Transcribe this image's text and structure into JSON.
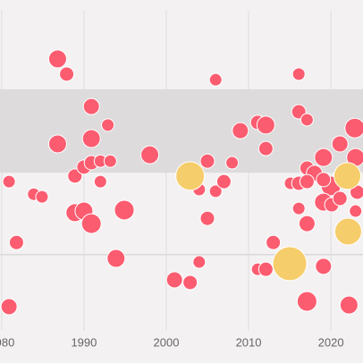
{
  "chart_data": {
    "type": "scatter",
    "xlim": [
      1979.8,
      2023.9
    ],
    "ylim": [
      0,
      100
    ],
    "xticks": [
      1980,
      1990,
      2000,
      2010,
      2020
    ],
    "yticks": [
      23
    ],
    "band": [
      47.8,
      73
    ],
    "grid": true,
    "series": [
      {
        "color": "#fc5c70",
        "x": [
          1986.8,
          1987.9,
          2006.0,
          1980.9,
          1983.9,
          1984.9,
          1981.8,
          1980.9,
          1986.8,
          1990.9,
          1990.9,
          1992.9,
          1988.9,
          1990.0,
          1990.9,
          1992.0,
          1993.2,
          1992.0,
          1998.0,
          1988.9,
          1990.0,
          1990.9,
          1994.9,
          1993.9,
          2001.0,
          2002.9,
          2004.0,
          2005.0,
          2004.0,
          2006.0,
          2007.0,
          2005.0,
          2008.0,
          2009.0,
          2011.1,
          2012.1,
          2012.1,
          2013.0,
          2011.1,
          2012.1,
          2016.1,
          2016.1,
          2017.1,
          2017.1,
          2018.0,
          2015.1,
          2016.1,
          2017.1,
          2016.1,
          2017.1,
          2017.1,
          2019.1,
          2019.1,
          2021.1,
          2022.9,
          2023.0,
          2020.0,
          2019.1,
          2020.1,
          2021.1,
          2023.2,
          2023.0,
          2022.2,
          2019.1
        ],
        "y": [
          82.2,
          77.6,
          75.9,
          45.1,
          41.3,
          40.5,
          26.7,
          7.3,
          56.5,
          67.8,
          58.1,
          62.2,
          46.8,
          49.5,
          50.8,
          51.3,
          51.3,
          45.1,
          53.2,
          35.7,
          36.2,
          32.4,
          36.5,
          21.9,
          15.4,
          14.6,
          20.8,
          51.3,
          42.7,
          42.2,
          45.1,
          34.0,
          50.8,
          60.5,
          63.0,
          62.2,
          55.1,
          26.7,
          18.6,
          18.6,
          77.6,
          66.2,
          63.8,
          49.2,
          47.6,
          44.6,
          44.6,
          45.1,
          37.0,
          32.4,
          8.9,
          19.5,
          52.4,
          56.5,
          61.3,
          52.4,
          43.8,
          38.9,
          38.1,
          40.0,
          41.9,
          36.2,
          7.8,
          45.7
        ],
        "sizes": [
          10,
          8,
          7,
          7,
          7,
          7,
          8,
          9,
          10,
          9,
          10,
          7,
          8,
          8,
          8,
          7,
          7,
          7,
          10,
          10,
          10,
          11,
          11,
          10,
          9,
          8,
          7,
          8,
          7,
          7,
          8,
          8,
          7,
          9,
          8,
          10,
          8,
          8,
          7,
          8,
          7,
          8,
          7,
          8,
          9,
          7,
          8,
          8,
          7,
          9,
          11,
          9,
          10,
          9,
          11,
          10,
          11,
          10,
          8,
          8,
          8,
          7,
          10,
          8
        ]
      },
      {
        "color": "#f6cd6b",
        "x": [
          2002.9,
          2022.0,
          2022.1,
          2015.0
        ],
        "y": [
          46.8,
          46.8,
          30.0,
          20.3
        ],
        "sizes": [
          16,
          15,
          15,
          19
        ]
      }
    ]
  }
}
